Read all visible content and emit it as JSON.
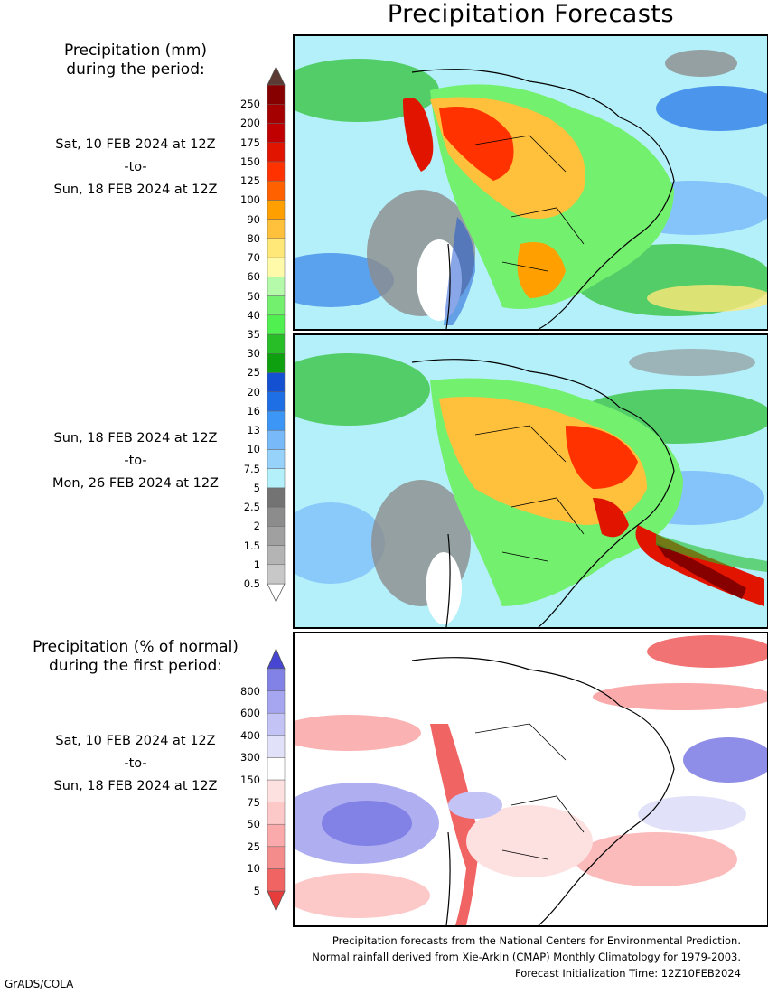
{
  "title": "Precipitation Forecasts",
  "amount_legend": {
    "heading_line1": "Precipitation (mm)",
    "heading_line2": "during the period:",
    "arrow_top_color": "#5a3a32",
    "arrow_bottom_color": "#ffffff",
    "levels": [
      {
        "label": "0.5",
        "color": "#c8c8c8"
      },
      {
        "label": "1",
        "color": "#b4b4b4"
      },
      {
        "label": "1.5",
        "color": "#a0a0a0"
      },
      {
        "label": "2",
        "color": "#8c8c8c"
      },
      {
        "label": "2.5",
        "color": "#737373"
      },
      {
        "label": "5",
        "color": "#b4f0fa"
      },
      {
        "label": "7.5",
        "color": "#96d2fa"
      },
      {
        "label": "10",
        "color": "#78b9fa"
      },
      {
        "label": "13",
        "color": "#3c96f5"
      },
      {
        "label": "16",
        "color": "#1e6ee6"
      },
      {
        "label": "20",
        "color": "#1450d2"
      },
      {
        "label": "25",
        "color": "#0fa00f"
      },
      {
        "label": "30",
        "color": "#28be28"
      },
      {
        "label": "35",
        "color": "#50f050"
      },
      {
        "label": "40",
        "color": "#73f06e"
      },
      {
        "label": "50",
        "color": "#b4faaa"
      },
      {
        "label": "60",
        "color": "#fffaaa"
      },
      {
        "label": "70",
        "color": "#ffe878"
      },
      {
        "label": "80",
        "color": "#ffc03c"
      },
      {
        "label": "90",
        "color": "#ffa000"
      },
      {
        "label": "100",
        "color": "#ff6000"
      },
      {
        "label": "125",
        "color": "#ff3200"
      },
      {
        "label": "150",
        "color": "#e11400"
      },
      {
        "label": "175",
        "color": "#c00000"
      },
      {
        "label": "200",
        "color": "#a50000"
      },
      {
        "label": "250",
        "color": "#870000"
      }
    ]
  },
  "period1": {
    "start": "Sat, 10 FEB 2024 at 12Z",
    "sep": "-to-",
    "end": "Sun, 18 FEB 2024 at 12Z"
  },
  "period2": {
    "start": "Sun, 18 FEB 2024 at 12Z",
    "sep": "-to-",
    "end": "Mon, 26 FEB 2024 at 12Z"
  },
  "percent_legend": {
    "heading_line1": "Precipitation (% of normal)",
    "heading_line2": "during the first period:",
    "arrow_top_color": "#4646d2",
    "arrow_bottom_color": "#e63c3c",
    "levels": [
      {
        "label": "5",
        "color": "#f06464"
      },
      {
        "label": "10",
        "color": "#f58c8c"
      },
      {
        "label": "25",
        "color": "#faaaaa"
      },
      {
        "label": "50",
        "color": "#fcc8c8"
      },
      {
        "label": "75",
        "color": "#fde1e1"
      },
      {
        "label": "150",
        "color": "#ffffff"
      },
      {
        "label": "300",
        "color": "#e1e1fa"
      },
      {
        "label": "400",
        "color": "#c3c3f5"
      },
      {
        "label": "600",
        "color": "#a5a5f0"
      },
      {
        "label": "800",
        "color": "#8282e6"
      }
    ]
  },
  "period3": {
    "start": "Sat, 10 FEB 2024 at 12Z",
    "sep": "-to-",
    "end": "Sun, 18 FEB 2024 at 12Z"
  },
  "footer": {
    "line1": "Precipitation forecasts from the National Centers for Environmental Prediction.",
    "line2": "Normal rainfall derived from Xie-Arkin (CMAP) Monthly Climatology for 1979-2003.",
    "line3": "Forecast Initialization Time: 12Z10FEB2024"
  },
  "credit": "GrADS/COLA"
}
